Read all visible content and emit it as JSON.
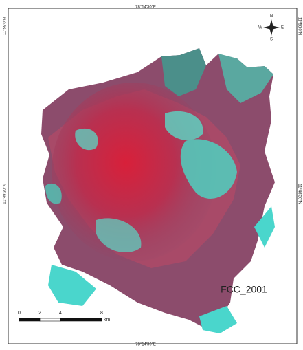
{
  "map": {
    "title": "FCC_2001",
    "longitude_labels": {
      "top": "78°14'30\"E",
      "bottom": "78°14'30\"E"
    },
    "latitude_labels": {
      "left_top": "11°58'0\"N",
      "right_top": "11°58'0\"N",
      "left_middle": "11°48'30\"N",
      "right_middle": "11°48'30\"N"
    },
    "compass": {
      "n": "N",
      "s": "S",
      "e": "E",
      "w": "W"
    },
    "scale_bar": {
      "ticks": [
        0,
        2,
        4,
        8
      ],
      "unit": "km"
    }
  }
}
